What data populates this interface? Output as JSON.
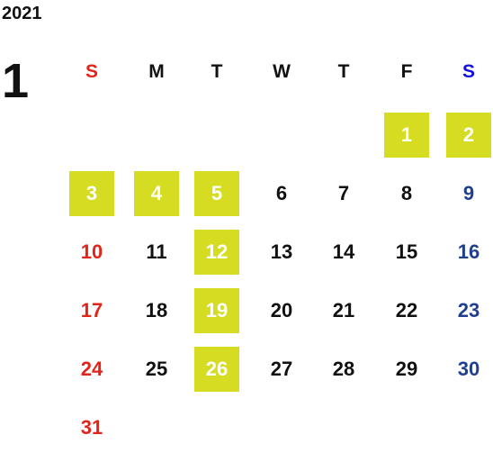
{
  "year": "2021",
  "month": "1",
  "weekdays": [
    "S",
    "M",
    "T",
    "W",
    "T",
    "F",
    "S"
  ],
  "weeks": [
    [
      null,
      null,
      null,
      null,
      null,
      {
        "day": 1,
        "marked": true
      },
      {
        "day": 2,
        "marked": true
      }
    ],
    [
      {
        "day": 3,
        "marked": true
      },
      {
        "day": 4,
        "marked": true
      },
      {
        "day": 5,
        "marked": true
      },
      {
        "day": 6
      },
      {
        "day": 7
      },
      {
        "day": 8
      },
      {
        "day": 9
      }
    ],
    [
      {
        "day": 10
      },
      {
        "day": 11
      },
      {
        "day": 12,
        "marked": true
      },
      {
        "day": 13
      },
      {
        "day": 14
      },
      {
        "day": 15
      },
      {
        "day": 16
      }
    ],
    [
      {
        "day": 17
      },
      {
        "day": 18
      },
      {
        "day": 19,
        "marked": true
      },
      {
        "day": 20
      },
      {
        "day": 21
      },
      {
        "day": 22
      },
      {
        "day": 23
      }
    ],
    [
      {
        "day": 24
      },
      {
        "day": 25
      },
      {
        "day": 26,
        "marked": true
      },
      {
        "day": 27
      },
      {
        "day": 28
      },
      {
        "day": 29
      },
      {
        "day": 30
      }
    ],
    [
      {
        "day": 31
      },
      null,
      null,
      null,
      null,
      null,
      null
    ]
  ]
}
